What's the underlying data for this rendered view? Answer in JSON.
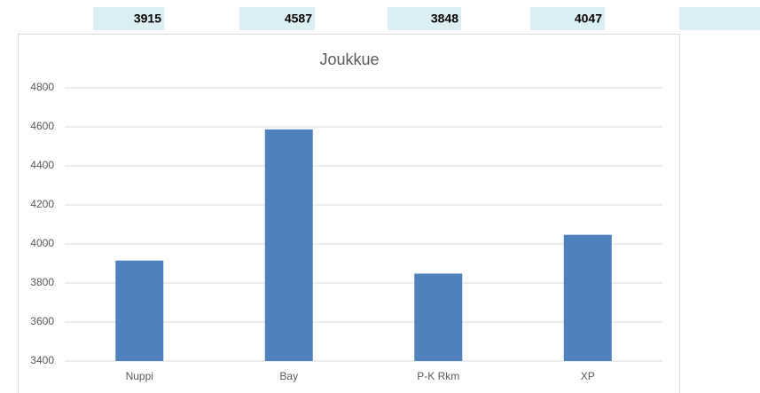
{
  "chart_data": {
    "type": "bar",
    "title": "Joukkue",
    "categories": [
      "Nuppi",
      "Bay",
      "P-K Rkm",
      "XP"
    ],
    "values": [
      3915,
      4587,
      3848,
      4047
    ],
    "color": "#4f81bd",
    "ylim": [
      3400,
      4800
    ],
    "yticks": [
      3400,
      3600,
      3800,
      4000,
      4200,
      4400,
      4600,
      4800
    ],
    "grid": true
  }
}
